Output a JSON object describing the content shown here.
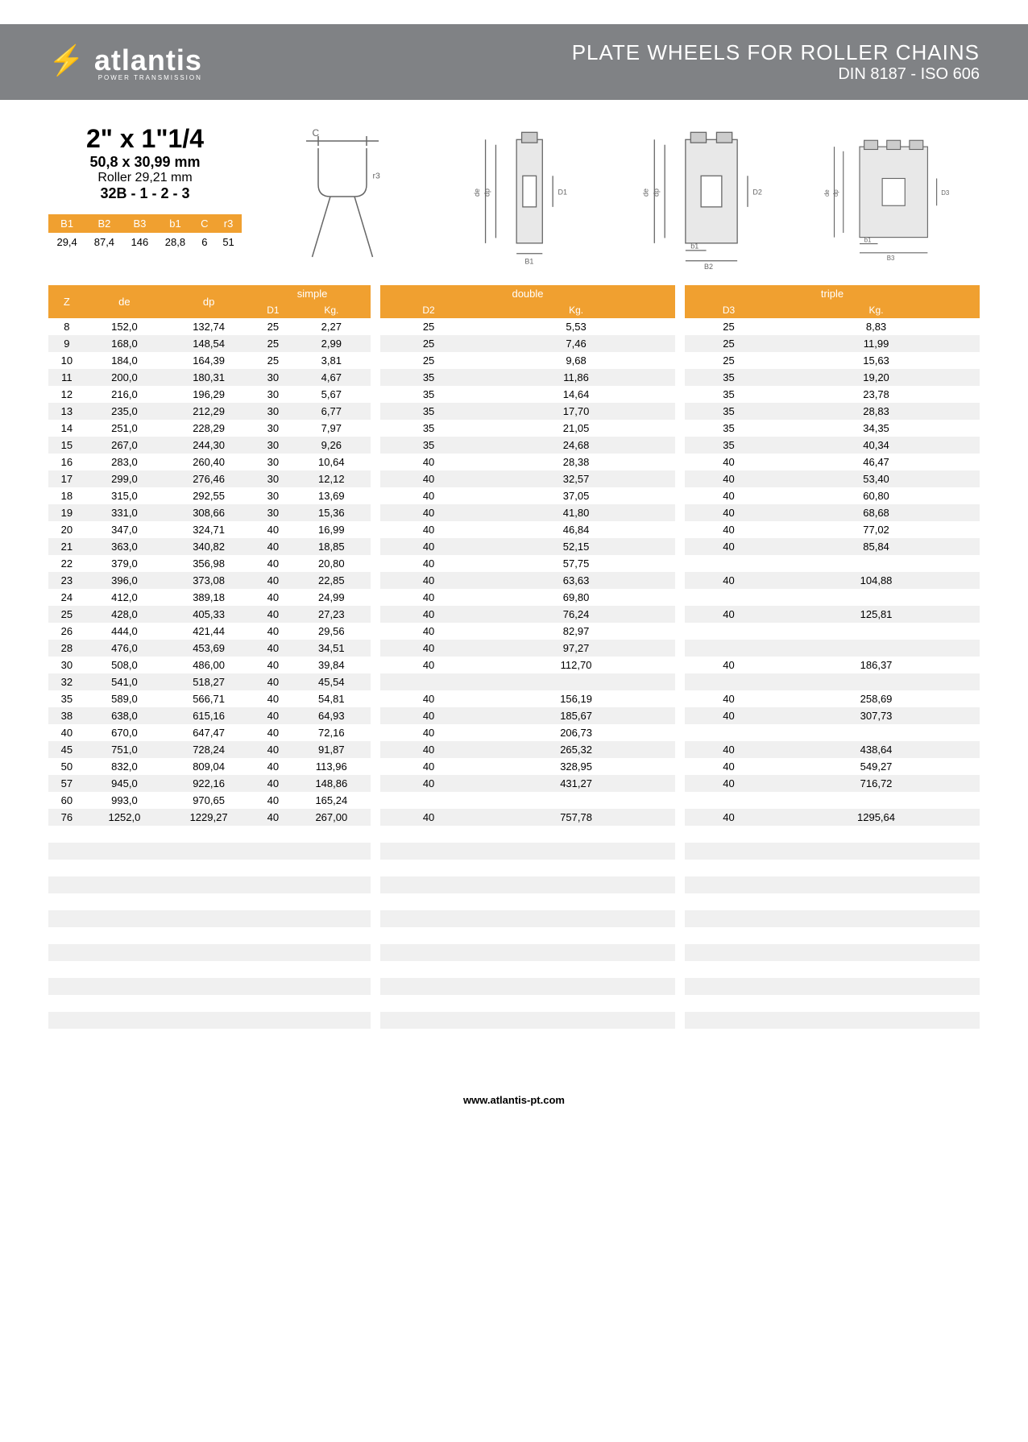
{
  "header": {
    "brand": "atlantis",
    "brand_sub": "POWER TRANSMISSION",
    "title1": "PLATE WHEELS FOR ROLLER CHAINS",
    "title2": "DIN 8187 - ISO 606"
  },
  "specs": {
    "size": "2\" x 1\"1/4",
    "mm": "50,8 x 30,99 mm",
    "roller": "Roller 29,21 mm",
    "code": "32B - 1 - 2 - 3"
  },
  "small_table": {
    "headers": [
      "B1",
      "B2",
      "B3",
      "b1",
      "C",
      "r3"
    ],
    "values": [
      "29,4",
      "87,4",
      "146",
      "28,8",
      "6",
      "51"
    ]
  },
  "main": {
    "left_headers": [
      "Z",
      "de",
      "dp"
    ],
    "simple_top": "simple",
    "simple_sub": [
      "D1",
      "Kg."
    ],
    "double_top": "double",
    "double_sub": [
      "D2",
      "Kg."
    ],
    "triple_top": "triple",
    "triple_sub": [
      "D3",
      "Kg."
    ],
    "rows": [
      {
        "z": "8",
        "de": "152,0",
        "dp": "132,74",
        "d1": "25",
        "kg1": "2,27",
        "d2": "25",
        "kg2": "5,53",
        "d3": "25",
        "kg3": "8,83"
      },
      {
        "z": "9",
        "de": "168,0",
        "dp": "148,54",
        "d1": "25",
        "kg1": "2,99",
        "d2": "25",
        "kg2": "7,46",
        "d3": "25",
        "kg3": "11,99"
      },
      {
        "z": "10",
        "de": "184,0",
        "dp": "164,39",
        "d1": "25",
        "kg1": "3,81",
        "d2": "25",
        "kg2": "9,68",
        "d3": "25",
        "kg3": "15,63"
      },
      {
        "z": "11",
        "de": "200,0",
        "dp": "180,31",
        "d1": "30",
        "kg1": "4,67",
        "d2": "35",
        "kg2": "11,86",
        "d3": "35",
        "kg3": "19,20"
      },
      {
        "z": "12",
        "de": "216,0",
        "dp": "196,29",
        "d1": "30",
        "kg1": "5,67",
        "d2": "35",
        "kg2": "14,64",
        "d3": "35",
        "kg3": "23,78"
      },
      {
        "z": "13",
        "de": "235,0",
        "dp": "212,29",
        "d1": "30",
        "kg1": "6,77",
        "d2": "35",
        "kg2": "17,70",
        "d3": "35",
        "kg3": "28,83"
      },
      {
        "z": "14",
        "de": "251,0",
        "dp": "228,29",
        "d1": "30",
        "kg1": "7,97",
        "d2": "35",
        "kg2": "21,05",
        "d3": "35",
        "kg3": "34,35"
      },
      {
        "z": "15",
        "de": "267,0",
        "dp": "244,30",
        "d1": "30",
        "kg1": "9,26",
        "d2": "35",
        "kg2": "24,68",
        "d3": "35",
        "kg3": "40,34"
      },
      {
        "z": "16",
        "de": "283,0",
        "dp": "260,40",
        "d1": "30",
        "kg1": "10,64",
        "d2": "40",
        "kg2": "28,38",
        "d3": "40",
        "kg3": "46,47"
      },
      {
        "z": "17",
        "de": "299,0",
        "dp": "276,46",
        "d1": "30",
        "kg1": "12,12",
        "d2": "40",
        "kg2": "32,57",
        "d3": "40",
        "kg3": "53,40"
      },
      {
        "z": "18",
        "de": "315,0",
        "dp": "292,55",
        "d1": "30",
        "kg1": "13,69",
        "d2": "40",
        "kg2": "37,05",
        "d3": "40",
        "kg3": "60,80"
      },
      {
        "z": "19",
        "de": "331,0",
        "dp": "308,66",
        "d1": "30",
        "kg1": "15,36",
        "d2": "40",
        "kg2": "41,80",
        "d3": "40",
        "kg3": "68,68"
      },
      {
        "z": "20",
        "de": "347,0",
        "dp": "324,71",
        "d1": "40",
        "kg1": "16,99",
        "d2": "40",
        "kg2": "46,84",
        "d3": "40",
        "kg3": "77,02"
      },
      {
        "z": "21",
        "de": "363,0",
        "dp": "340,82",
        "d1": "40",
        "kg1": "18,85",
        "d2": "40",
        "kg2": "52,15",
        "d3": "40",
        "kg3": "85,84"
      },
      {
        "z": "22",
        "de": "379,0",
        "dp": "356,98",
        "d1": "40",
        "kg1": "20,80",
        "d2": "40",
        "kg2": "57,75",
        "d3": "",
        "kg3": ""
      },
      {
        "z": "23",
        "de": "396,0",
        "dp": "373,08",
        "d1": "40",
        "kg1": "22,85",
        "d2": "40",
        "kg2": "63,63",
        "d3": "40",
        "kg3": "104,88"
      },
      {
        "z": "24",
        "de": "412,0",
        "dp": "389,18",
        "d1": "40",
        "kg1": "24,99",
        "d2": "40",
        "kg2": "69,80",
        "d3": "",
        "kg3": ""
      },
      {
        "z": "25",
        "de": "428,0",
        "dp": "405,33",
        "d1": "40",
        "kg1": "27,23",
        "d2": "40",
        "kg2": "76,24",
        "d3": "40",
        "kg3": "125,81"
      },
      {
        "z": "26",
        "de": "444,0",
        "dp": "421,44",
        "d1": "40",
        "kg1": "29,56",
        "d2": "40",
        "kg2": "82,97",
        "d3": "",
        "kg3": ""
      },
      {
        "z": "28",
        "de": "476,0",
        "dp": "453,69",
        "d1": "40",
        "kg1": "34,51",
        "d2": "40",
        "kg2": "97,27",
        "d3": "",
        "kg3": ""
      },
      {
        "z": "30",
        "de": "508,0",
        "dp": "486,00",
        "d1": "40",
        "kg1": "39,84",
        "d2": "40",
        "kg2": "112,70",
        "d3": "40",
        "kg3": "186,37"
      },
      {
        "z": "32",
        "de": "541,0",
        "dp": "518,27",
        "d1": "40",
        "kg1": "45,54",
        "d2": "",
        "kg2": "",
        "d3": "",
        "kg3": ""
      },
      {
        "z": "35",
        "de": "589,0",
        "dp": "566,71",
        "d1": "40",
        "kg1": "54,81",
        "d2": "40",
        "kg2": "156,19",
        "d3": "40",
        "kg3": "258,69"
      },
      {
        "z": "38",
        "de": "638,0",
        "dp": "615,16",
        "d1": "40",
        "kg1": "64,93",
        "d2": "40",
        "kg2": "185,67",
        "d3": "40",
        "kg3": "307,73"
      },
      {
        "z": "40",
        "de": "670,0",
        "dp": "647,47",
        "d1": "40",
        "kg1": "72,16",
        "d2": "40",
        "kg2": "206,73",
        "d3": "",
        "kg3": ""
      },
      {
        "z": "45",
        "de": "751,0",
        "dp": "728,24",
        "d1": "40",
        "kg1": "91,87",
        "d2": "40",
        "kg2": "265,32",
        "d3": "40",
        "kg3": "438,64"
      },
      {
        "z": "50",
        "de": "832,0",
        "dp": "809,04",
        "d1": "40",
        "kg1": "113,96",
        "d2": "40",
        "kg2": "328,95",
        "d3": "40",
        "kg3": "549,27"
      },
      {
        "z": "57",
        "de": "945,0",
        "dp": "922,16",
        "d1": "40",
        "kg1": "148,86",
        "d2": "40",
        "kg2": "431,27",
        "d3": "40",
        "kg3": "716,72"
      },
      {
        "z": "60",
        "de": "993,0",
        "dp": "970,65",
        "d1": "40",
        "kg1": "165,24",
        "d2": "",
        "kg2": "",
        "d3": "",
        "kg3": ""
      },
      {
        "z": "76",
        "de": "1252,0",
        "dp": "1229,27",
        "d1": "40",
        "kg1": "267,00",
        "d2": "40",
        "kg2": "757,78",
        "d3": "40",
        "kg3": "1295,64"
      }
    ],
    "empty_rows": 13
  },
  "footer": "www.atlantis-pt.com",
  "colors": {
    "accent": "#f0a030",
    "header_bg": "#808285",
    "stripe": "#f0f0f0"
  }
}
